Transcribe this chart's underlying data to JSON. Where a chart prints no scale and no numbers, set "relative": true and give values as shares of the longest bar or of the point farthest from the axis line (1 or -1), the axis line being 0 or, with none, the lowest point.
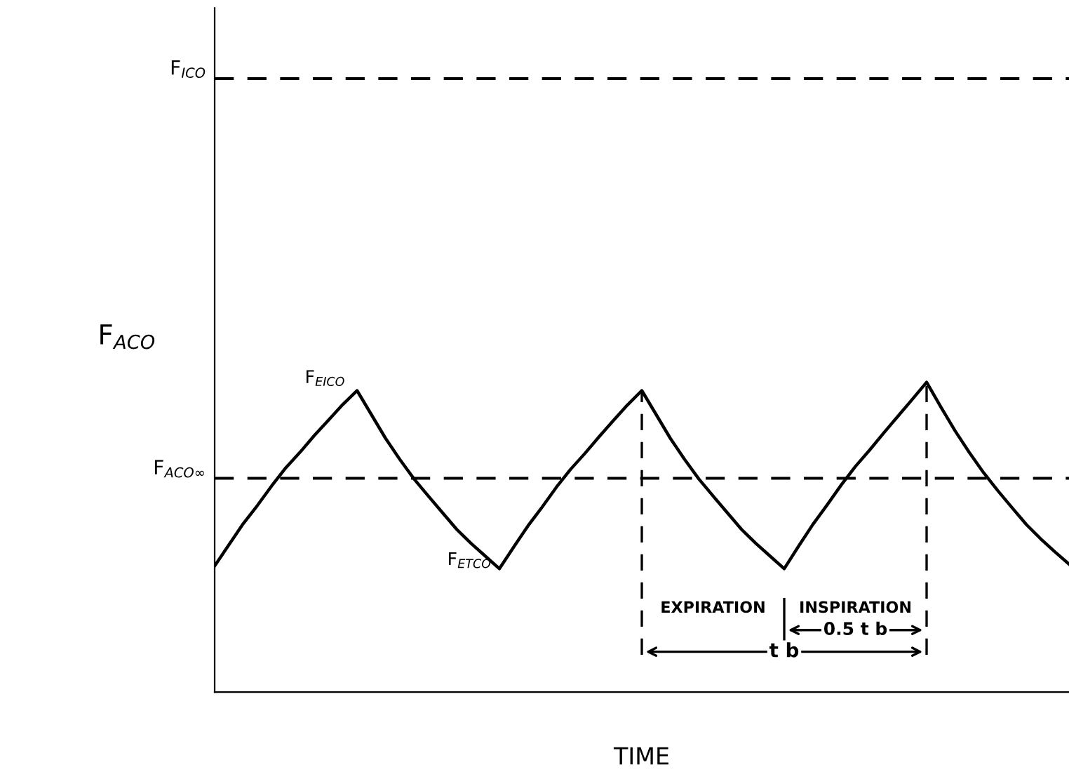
{
  "chart_data": {
    "type": "line",
    "relative": true,
    "xlabel": "TIME",
    "ylabel": "F$_{ACO}$",
    "categories": [
      null,
      null,
      null,
      null,
      null,
      null,
      null,
      null,
      null,
      null,
      null,
      null,
      null,
      null,
      null,
      null,
      null,
      null,
      null,
      null,
      null,
      null,
      null,
      null,
      null,
      null,
      null,
      null,
      null,
      null,
      null,
      null,
      null,
      null,
      null,
      null,
      null,
      null,
      null,
      null,
      null,
      null,
      null,
      null,
      null,
      null,
      null,
      null,
      null,
      null,
      null,
      null,
      null,
      null,
      null,
      null,
      null,
      null,
      null,
      null,
      null
    ],
    "series": [
      {
        "color": "#000000",
        "values": [
          0.407,
          0.475,
          0.543,
          0.602,
          0.665,
          0.724,
          0.774,
          0.828,
          0.878,
          0.928,
          0.973,
          0.896,
          0.819,
          0.751,
          0.688,
          0.633,
          0.579,
          0.525,
          0.48,
          0.439,
          0.398,
          0.468,
          0.536,
          0.597,
          0.661,
          0.719,
          0.77,
          0.824,
          0.876,
          0.927,
          0.973,
          0.896,
          0.819,
          0.751,
          0.688,
          0.633,
          0.579,
          0.525,
          0.48,
          0.439,
          0.398,
          0.47,
          0.54,
          0.603,
          0.668,
          0.728,
          0.781,
          0.837,
          0.891,
          0.945,
          1.0,
          0.92,
          0.843,
          0.773,
          0.708,
          0.65,
          0.595,
          0.541,
          0.495,
          0.453,
          0.413
        ]
      }
    ],
    "line_style": "solid",
    "marker": "none",
    "legend": false,
    "ref_lines": [
      {
        "axis": "y",
        "value": 1.98,
        "label": "F$_{ICO}$",
        "color": "#000000",
        "line_style": "dashed"
      },
      {
        "axis": "y",
        "value": 0.69,
        "label": "F$_{ACO∞}$",
        "color": "#000000",
        "line_style": "dashed"
      }
    ],
    "annotations": [
      "F$_{EICO}$",
      "F$_{ETCO}$",
      "EXPIRATION",
      "INSPIRATION",
      "0.5 t b",
      "t b"
    ]
  }
}
